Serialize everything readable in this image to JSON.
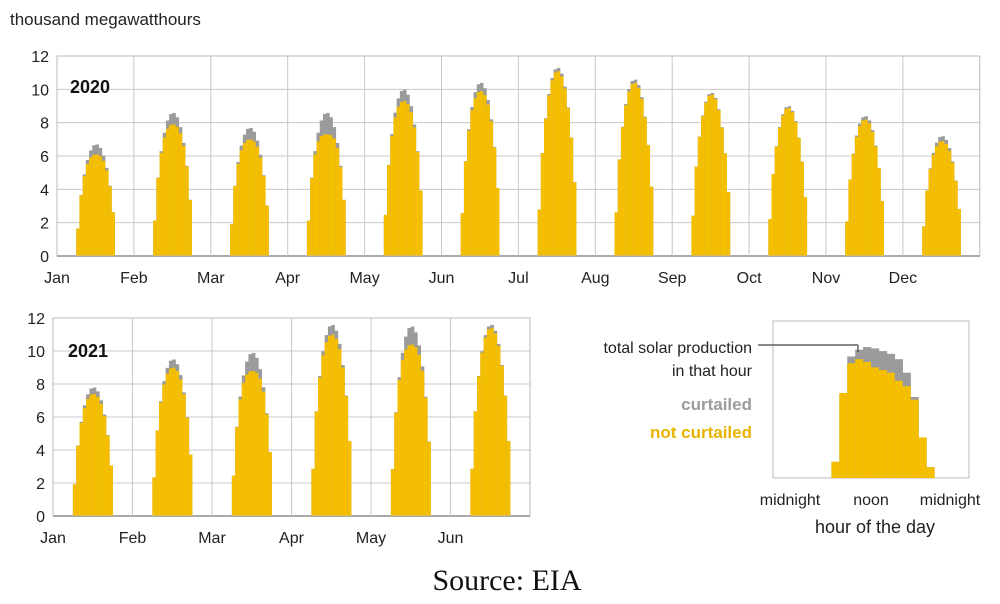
{
  "units_label": "thousand megawatthours",
  "source": "Source: EIA",
  "colors": {
    "not_curtailed": "#f5bf00",
    "curtailed": "#9b9b9b",
    "grid": "#c8c8c8",
    "axis": "#333333"
  },
  "chart_data": [
    {
      "type": "area",
      "panel": "2020",
      "year_label": "2020",
      "ylabel": "thousand megawatthours",
      "ylim": [
        0,
        12
      ],
      "yticks": [
        0,
        2,
        4,
        6,
        8,
        10,
        12
      ],
      "months": [
        "Jan",
        "Feb",
        "Mar",
        "Apr",
        "May",
        "Jun",
        "Jul",
        "Aug",
        "Sep",
        "Oct",
        "Nov",
        "Dec"
      ],
      "x_unit": "hour of the day (0-23) within each month",
      "series": [
        {
          "name": "curtailed",
          "peak_total": [
            6.7,
            8.6,
            7.7,
            8.6,
            10.0,
            10.4,
            11.3,
            10.6,
            9.8,
            9.0,
            8.4,
            7.2
          ]
        },
        {
          "name": "not curtailed",
          "peak_value": [
            6.1,
            7.9,
            7.0,
            7.3,
            9.3,
            9.9,
            11.1,
            10.4,
            9.7,
            8.9,
            8.2,
            6.9
          ]
        }
      ]
    },
    {
      "type": "area",
      "panel": "2021",
      "year_label": "2021",
      "ylim": [
        0,
        12
      ],
      "yticks": [
        0,
        2,
        4,
        6,
        8,
        10,
        12
      ],
      "months": [
        "Jan",
        "Feb",
        "Mar",
        "Apr",
        "May",
        "Jun"
      ],
      "x_unit": "hour of the day (0-23) within each month",
      "series": [
        {
          "name": "curtailed",
          "peak_total": [
            7.8,
            9.5,
            9.9,
            11.6,
            11.5,
            11.6
          ]
        },
        {
          "name": "not curtailed",
          "peak_value": [
            7.4,
            9.0,
            8.8,
            11.0,
            10.4,
            11.4
          ]
        }
      ]
    },
    {
      "type": "area",
      "panel": "legend",
      "annotation_line1": "total solar production",
      "annotation_line2": "in that hour",
      "curtailed_label": "curtailed",
      "not_curtailed_label": "not curtailed",
      "xticks": [
        "midnight",
        "noon",
        "midnight"
      ],
      "xlabel": "hour of the day"
    }
  ]
}
